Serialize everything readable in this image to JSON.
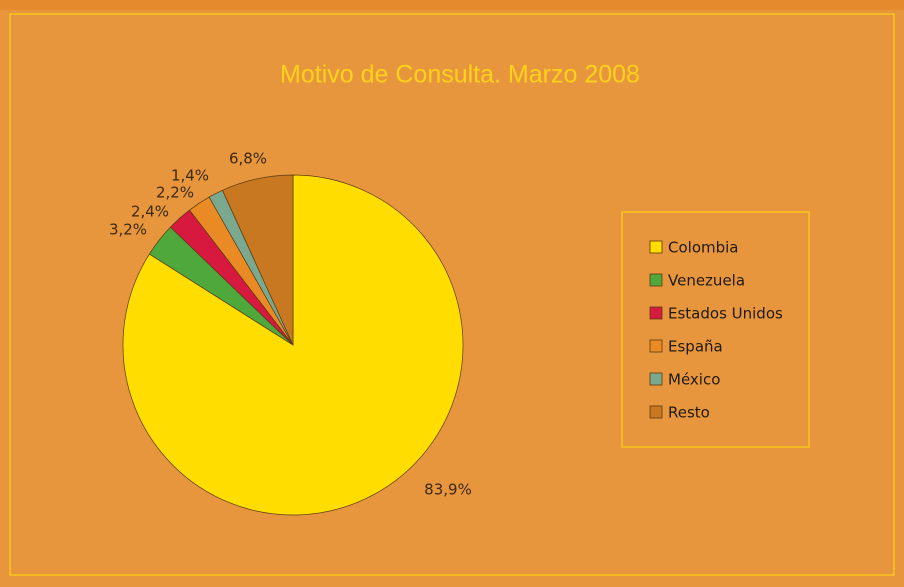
{
  "chart_data": {
    "type": "pie",
    "title": "Motivo de Consulta. Marzo 2008",
    "categories": [
      "Colombia",
      "Venezuela",
      "Estados Unidos",
      "España",
      "México",
      "Resto"
    ],
    "values": [
      83.9,
      3.2,
      2.4,
      2.2,
      1.4,
      6.8
    ],
    "value_labels": [
      "83,9%",
      "3,2%",
      "2,4%",
      "2,2%",
      "1,4%",
      "6,8%"
    ],
    "colors": [
      "#ffdd00",
      "#4ea83c",
      "#d7193f",
      "#e98a25",
      "#7ba98f",
      "#c87820"
    ],
    "legend": "right"
  }
}
